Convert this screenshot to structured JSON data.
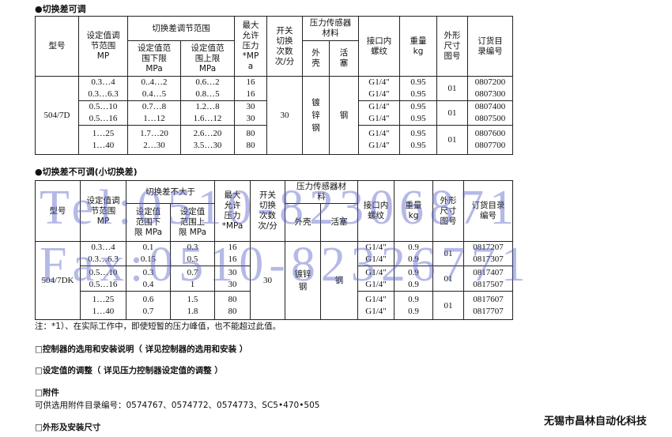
{
  "table1": {
    "title": "●切换差可调",
    "headers": {
      "model": "型号",
      "range": [
        "设定值调",
        "节范围",
        "MP"
      ],
      "diff_group": "切换差调节范围",
      "lower": [
        "设定值范",
        "围下限",
        "MPa"
      ],
      "upper": [
        "设定值范",
        "围上限",
        "MPa"
      ],
      "max_pressure": [
        "最大",
        "允许",
        "压力",
        "*MP",
        "a"
      ],
      "switch_freq": [
        "开关",
        "切换",
        "次数",
        "次/分"
      ],
      "material_group": [
        "压力传感器",
        "材料"
      ],
      "housing": [
        "外",
        "壳"
      ],
      "piston": [
        "活",
        "塞"
      ],
      "thread": [
        "接口内",
        "螺纹"
      ],
      "weight": [
        "重量",
        "kg"
      ],
      "dim": [
        "外形",
        "尺寸",
        "图号"
      ],
      "order": [
        "订货目",
        "录编号"
      ]
    },
    "model": "504/7D",
    "switch_freq": "30",
    "housing": [
      "镀",
      "锌",
      "钢"
    ],
    "piston": "钢",
    "groups": [
      {
        "range": [
          "0.3…4",
          "0.3…6.3"
        ],
        "lower": [
          "0..4…2",
          "0.4…5"
        ],
        "upper": [
          "0.6…2",
          "0.8…5"
        ],
        "max": [
          "16",
          "16"
        ],
        "thread": [
          "G1/4\"",
          "G1/4\""
        ],
        "weight": [
          "0.95",
          "0.95"
        ],
        "dim": "01",
        "order": [
          "0807200",
          "0807300"
        ]
      },
      {
        "range": [
          "0.5…10",
          "0.5…16"
        ],
        "lower": [
          "0.7…8",
          "1…12"
        ],
        "upper": [
          "1.2…8",
          "1.6…12"
        ],
        "max": [
          "30",
          "30"
        ],
        "thread": [
          "G1/4\"",
          "G1/4\""
        ],
        "weight": [
          "0.95",
          "0.95"
        ],
        "dim": "01",
        "order": [
          "0807400",
          "0807500"
        ]
      },
      {
        "range": [
          "1…25",
          "1…40"
        ],
        "lower": [
          "1.7…20",
          "2…30"
        ],
        "upper": [
          "2.6…20",
          "3.5…30"
        ],
        "max": [
          "80",
          "80"
        ],
        "thread": [
          "G1/4\"",
          "G1/4\""
        ],
        "weight": [
          "0.95",
          "0.95"
        ],
        "dim": "01",
        "order": [
          "0807600",
          "0807700"
        ]
      }
    ]
  },
  "table2": {
    "title": "●切换差不可调(小切换差)",
    "headers": {
      "model": "型号",
      "range": [
        "设定值调",
        "节范围",
        "MP"
      ],
      "diff_group": "切换差不大于",
      "lower": [
        "设定值",
        "范围下",
        "限 MPa"
      ],
      "upper": [
        "设定值",
        "范围上",
        "限 MPa"
      ],
      "max_pressure": [
        "最大",
        "允许",
        "压力",
        "*MPa"
      ],
      "switch_freq": [
        "开关",
        "切换",
        "次数",
        "次/分"
      ],
      "material_group": [
        "压力传感器材",
        "料"
      ],
      "housing": [
        "外壳"
      ],
      "piston": [
        "活塞"
      ],
      "thread": [
        "接口内",
        "螺纹"
      ],
      "weight": [
        "重量",
        "kg"
      ],
      "dim": [
        "外形",
        "尺寸",
        "图号"
      ],
      "order": [
        "订货目录",
        "编号"
      ]
    },
    "model": "504/7DK",
    "switch_freq": "30",
    "housing": [
      "镀锌",
      "钢"
    ],
    "piston": "钢",
    "groups": [
      {
        "range": [
          "0.3…4",
          "0.3…6.3"
        ],
        "lower": [
          "0.1",
          "0.15"
        ],
        "upper": [
          "0.3",
          "0.5"
        ],
        "max": [
          "16",
          "16"
        ],
        "thread": [
          "G1/4\"",
          "G1/4\""
        ],
        "weight": [
          "0.9",
          "0.9"
        ],
        "dim": "01",
        "order": [
          "0817207",
          "0817307"
        ]
      },
      {
        "range": [
          "0.5…10",
          "0.5…16"
        ],
        "lower": [
          "0.3",
          "0.4"
        ],
        "upper": [
          "0.7",
          "1"
        ],
        "max": [
          "30",
          "30"
        ],
        "thread": [
          "G1/4\"",
          "G1/4\""
        ],
        "weight": [
          "0.9",
          "0.9"
        ],
        "dim": "01",
        "order": [
          "0817407",
          "0817507"
        ]
      },
      {
        "range": [
          "1…25",
          "1…40"
        ],
        "lower": [
          "0.6",
          "0.7"
        ],
        "upper": [
          "1.5",
          "1.8"
        ],
        "max": [
          "80",
          "80"
        ],
        "thread": [
          "G1/4\"",
          "G1/4\""
        ],
        "weight": [
          "0.9",
          "0.9"
        ],
        "dim": "01",
        "order": [
          "0817607",
          "0817707"
        ]
      }
    ]
  },
  "note": "注：*1）、在实际工作中，即使短暂的压力峰值，也不能超过此值。",
  "sections": {
    "controller": "□控制器的选用和安装说明（ 详见控制器的选用和安装 ）",
    "setpoint": "□设定值的调整（ 详见压力控制器设定值的调整 ）",
    "accessories": "□附件",
    "accessories_text": "可供选用附件目录编号：0574767、0574772、0574773、SC5•470•505",
    "dimensions": "□外形及安装尺寸"
  },
  "watermark": {
    "tel": "Tel:0510-82306871",
    "fax": "Fax:0510-82326771"
  },
  "company": "无锡市昌林自动化科技"
}
